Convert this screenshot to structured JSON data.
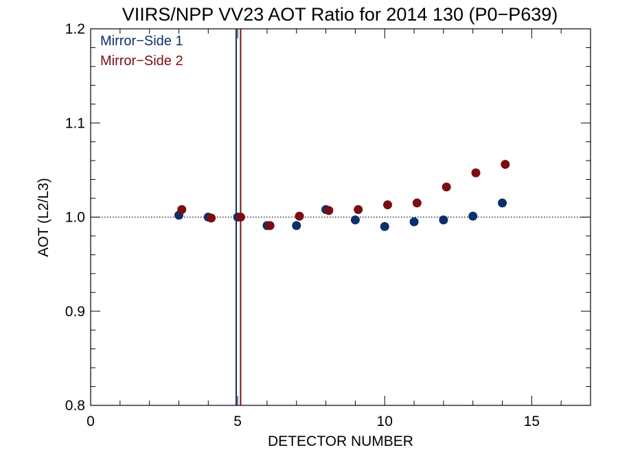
{
  "chart_data": {
    "type": "scatter",
    "title": "VIIRS/NPP VV23 AOT Ratio for 2014 130 (P0−P639)",
    "xlabel": "DETECTOR NUMBER",
    "ylabel": "AOT (L2/L3)",
    "xlim": [
      0,
      17
    ],
    "ylim": [
      0.8,
      1.2
    ],
    "xticks": [
      0,
      5,
      10,
      15
    ],
    "xtick_labels": [
      "0",
      "5",
      "10",
      "15"
    ],
    "yticks": [
      0.8,
      0.9,
      1.0,
      1.1,
      1.2
    ],
    "ytick_labels": [
      "0.8",
      "0.9",
      "1.0",
      "1.1",
      "1.2"
    ],
    "x_minor_step": 1,
    "y_minor_step": 0.02,
    "reference_line": {
      "y": 1.0,
      "style": "dotted"
    },
    "vertical_lines": [
      {
        "x": 4.95,
        "color": "#0d2f6b"
      },
      {
        "x": 5.1,
        "color": "#7a0d12"
      }
    ],
    "legend_position": "top-left",
    "series": [
      {
        "name": "Mirror−Side 1",
        "color": "#0d2f6b",
        "x": [
          3,
          4,
          5,
          6,
          7,
          8,
          9,
          10,
          11,
          12,
          13,
          14
        ],
        "y": [
          1.002,
          1.0,
          1.0,
          0.991,
          0.991,
          1.008,
          0.997,
          0.99,
          0.995,
          0.997,
          1.001,
          1.015
        ]
      },
      {
        "name": "Mirror−Side 2",
        "color": "#7a0d12",
        "x": [
          3.1,
          4.1,
          5.1,
          6.1,
          7.1,
          8.1,
          9.1,
          10.1,
          11.1,
          12.1,
          13.1,
          14.1
        ],
        "y": [
          1.008,
          0.999,
          1.0,
          0.991,
          1.001,
          1.007,
          1.008,
          1.013,
          1.015,
          1.032,
          1.047,
          1.056
        ]
      }
    ]
  }
}
